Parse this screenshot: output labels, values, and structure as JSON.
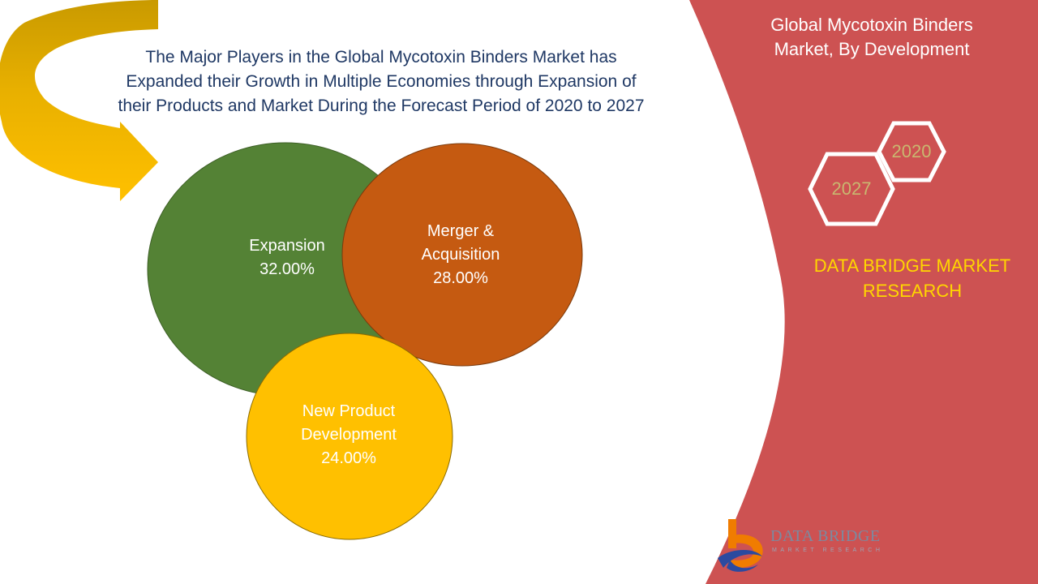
{
  "headline": {
    "line1": "The Major Players in the Global Mycotoxin Binders Market has",
    "line2": "Expanded their Growth in Multiple Economies through Expansion of",
    "line3": "their Products and Market During the Forecast Period of 2020 to 2027"
  },
  "panel": {
    "title_line1": "Global Mycotoxin Binders",
    "title_line2": "Market, By Development",
    "year_start": "2020",
    "year_end": "2027",
    "company_line1": "DATA BRIDGE MARKET",
    "company_line2": "RESEARCH"
  },
  "segments": [
    {
      "label": "Expansion",
      "label2": "",
      "value": "32.00%",
      "color": "#548235"
    },
    {
      "label": "Merger &",
      "label2": "Acquisition",
      "value": "28.00%",
      "color": "#c55a11"
    },
    {
      "label": "New Product",
      "label2": "Development",
      "value": "24.00%",
      "color": "#ffc000"
    }
  ],
  "logo": {
    "name": "DATA BRIDGE",
    "tagline": "MARKET RESEARCH"
  },
  "colors": {
    "panel": "#cd5252",
    "arrow": "#ffc000",
    "arrow_dark": "#c99a00",
    "headline": "#1f3864",
    "company": "#ffd600"
  }
}
